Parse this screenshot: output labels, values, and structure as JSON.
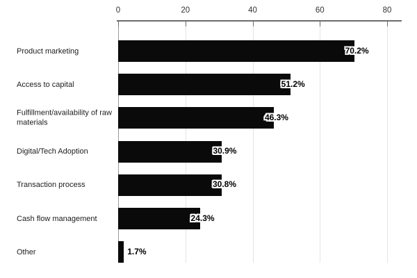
{
  "chart_data": {
    "type": "bar",
    "orientation": "horizontal",
    "title": "",
    "categories": [
      "Product marketing",
      "Access to capital",
      "Fulfillment/availability of raw materials",
      "Digital/Tech Adoption",
      "Transaction process",
      "Cash flow management",
      "Other"
    ],
    "values": [
      70.2,
      51.2,
      46.3,
      30.9,
      30.8,
      24.3,
      1.7
    ],
    "value_labels": [
      "70.2%",
      "51.2%",
      "46.3%",
      "30.9%",
      "30.8%",
      "24.3%",
      "1.7%"
    ],
    "x_ticks": [
      0,
      20,
      40,
      60,
      80
    ],
    "xlim": [
      0,
      84.3
    ],
    "xlabel": "",
    "ylabel": "",
    "grid": true,
    "axis_position": "top",
    "legend_position": "none",
    "bar_color": "#0a0a0a"
  },
  "colors": {
    "bar": "#0a0a0a",
    "grid": "#e4e4e4",
    "zero_line": "#999999",
    "axis_line": "#6b6b6b",
    "tick_text": "#333333",
    "label_text": "#1c1c1c",
    "background": "#ffffff"
  }
}
